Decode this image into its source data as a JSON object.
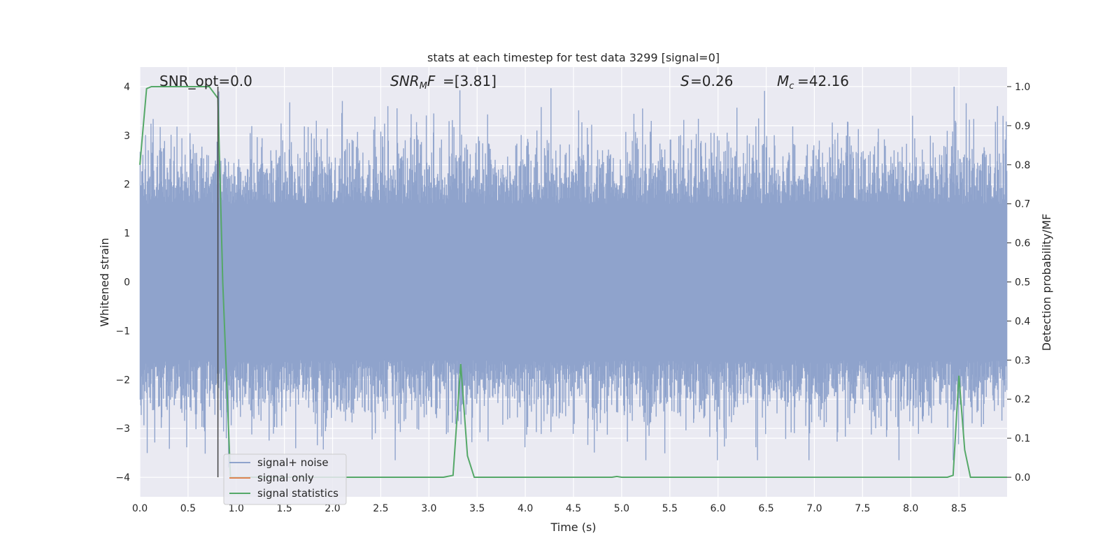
{
  "chart_data": {
    "type": "line",
    "title": "stats at each timestep for test data 3299 [signal=0]",
    "xlabel": "Time (s)",
    "ylabel_left": "Whitened strain",
    "ylabel_right": "Detection probability/MF",
    "xlim": [
      0.0,
      9.0
    ],
    "ylim_left": [
      -4.4,
      4.4
    ],
    "ylim_right": [
      -0.05,
      1.05
    ],
    "x_ticks": [
      "0.0",
      "0.5",
      "1.0",
      "1.5",
      "2.0",
      "2.5",
      "3.0",
      "3.5",
      "4.0",
      "4.5",
      "5.0",
      "5.5",
      "6.0",
      "6.5",
      "7.0",
      "7.5",
      "8.0",
      "8.5"
    ],
    "y_ticks_left": [
      "4",
      "3",
      "2",
      "1",
      "0",
      "−1",
      "−2",
      "−3",
      "−4"
    ],
    "y_ticks_right": [
      "1.0",
      "0.9",
      "0.8",
      "0.7",
      "0.6",
      "0.5",
      "0.4",
      "0.3",
      "0.2",
      "0.1",
      "0.0"
    ],
    "grid": true,
    "annotations": {
      "snr_opt": "SNR_opt=0.0",
      "snr_mf": "=[3.81]",
      "s_value": "=0.26",
      "mc_value": "=42.16"
    },
    "vertical_marker_x": 0.81,
    "series": [
      {
        "name": "signal+ noise",
        "color": "#8fa3cc",
        "kind": "noise",
        "amplitude_typical": 1.6,
        "amplitude_peak_max": 4.0,
        "amplitude_peak_min": -3.65
      },
      {
        "name": "signal only",
        "color": "#dd8452",
        "kind": "flat",
        "value": 0
      },
      {
        "name": "signal statistics",
        "color": "#55a868",
        "axis": "right",
        "x": [
          0.0,
          0.07,
          0.12,
          0.5,
          0.72,
          0.81,
          0.86,
          0.94,
          1.0,
          3.15,
          3.25,
          3.33,
          3.4,
          3.47,
          4.9,
          4.95,
          5.0,
          8.38,
          8.44,
          8.5,
          8.56,
          8.62,
          9.0
        ],
        "y": [
          0.8,
          0.995,
          1.0,
          1.0,
          1.0,
          0.97,
          0.5,
          0.0,
          0.0,
          0.0,
          0.005,
          0.29,
          0.055,
          0.0,
          0.0,
          0.002,
          0.0,
          0.0,
          0.005,
          0.26,
          0.07,
          0.0,
          0.0
        ]
      }
    ],
    "legend_position": "lower-left"
  }
}
